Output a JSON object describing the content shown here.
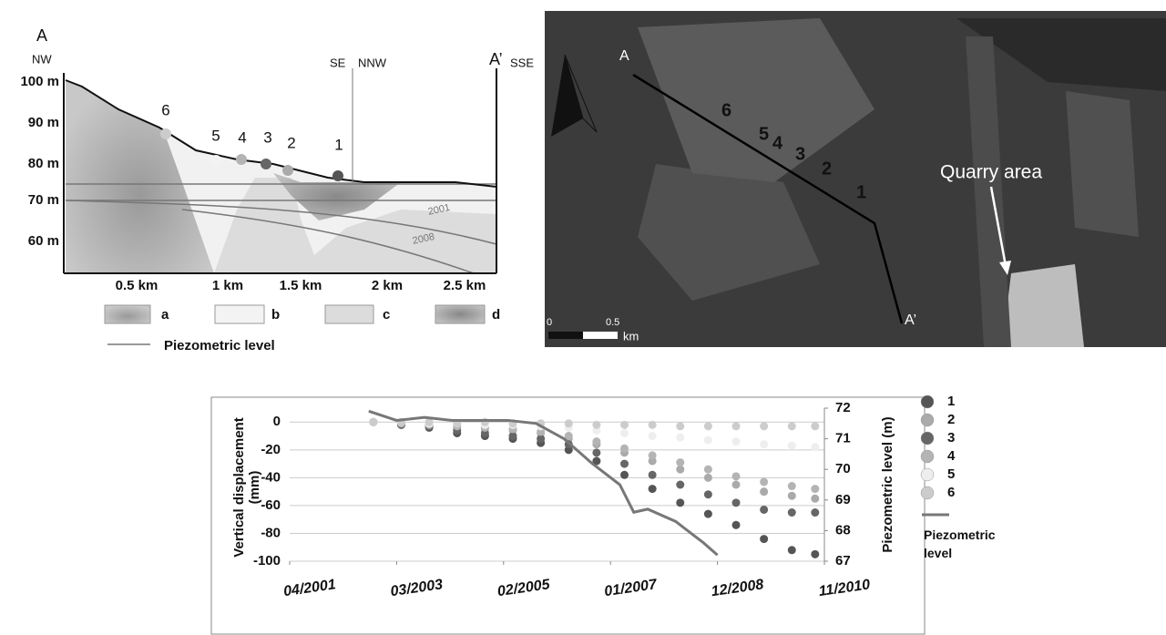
{
  "cross_section": {
    "start_label": "A",
    "start_direction": "NW",
    "break_left": "SE",
    "break_right": "NNW",
    "end_label": "A’",
    "end_direction": "SSE",
    "depth_labels": [
      "100 m",
      "90 m",
      "80 m",
      "70 m",
      "60 m"
    ],
    "distance_labels": [
      "0.5 km",
      "1 km",
      "1.5 km",
      "2 km",
      "2.5 km"
    ],
    "points": [
      "6",
      "5",
      "4",
      "3",
      "2",
      "1"
    ],
    "curve_labels": [
      "2001",
      "2008"
    ],
    "legend": [
      "a",
      "b",
      "c",
      "d"
    ],
    "piezometric_label": "Piezometric level"
  },
  "map": {
    "start_label": "A",
    "end_label": "A’",
    "points": [
      "6",
      "5",
      "4",
      "3",
      "2",
      "1"
    ],
    "area_label": "Quarry area",
    "scale_labels": [
      "0",
      "0.5",
      "km"
    ]
  },
  "chart_data": {
    "type": "scatter",
    "y_label": "Vertical displacement (mm)",
    "y2_label": "Piezometric level (m)",
    "xlim": [
      "04/2001",
      "11/2010"
    ],
    "xticks": [
      "04/2001",
      "03/2003",
      "02/2005",
      "01/2007",
      "12/2008",
      "11/2010"
    ],
    "ylim": [
      -100,
      10
    ],
    "yticks": [
      0,
      -20,
      -40,
      -60,
      -80,
      -100
    ],
    "y2lim": [
      67,
      72
    ],
    "y2ticks": [
      67,
      68,
      69,
      70,
      71,
      72
    ],
    "grid": true,
    "x": [
      "10/2002",
      "04/2003",
      "10/2003",
      "04/2004",
      "10/2004",
      "04/2005",
      "10/2005",
      "04/2006",
      "10/2006",
      "04/2007",
      "10/2007",
      "04/2008",
      "10/2008",
      "04/2009",
      "10/2009",
      "04/2010",
      "09/2010"
    ],
    "series": [
      {
        "name": "1",
        "color": "#555555",
        "values": [
          0,
          -2,
          -4,
          -8,
          -10,
          -12,
          -15,
          -20,
          -28,
          -38,
          -48,
          -58,
          -66,
          -74,
          -84,
          -92,
          -95
        ]
      },
      {
        "name": "2",
        "color": "#aaaaaa",
        "values": [
          0,
          -1,
          -2,
          -4,
          -5,
          -6,
          -8,
          -12,
          -16,
          -22,
          -28,
          -34,
          -40,
          -45,
          -50,
          -53,
          -55
        ]
      },
      {
        "name": "3",
        "color": "#666666",
        "values": [
          0,
          -2,
          -3,
          -6,
          -8,
          -10,
          -12,
          -16,
          -22,
          -30,
          -38,
          -45,
          -52,
          -58,
          -63,
          -65,
          -65
        ]
      },
      {
        "name": "4",
        "color": "#b4b4b4",
        "values": [
          0,
          -1,
          -2,
          -3,
          -4,
          -5,
          -7,
          -10,
          -14,
          -19,
          -24,
          -29,
          -34,
          -39,
          -43,
          -46,
          -48
        ]
      },
      {
        "name": "5",
        "color": "#eeeeee",
        "values": [
          0,
          0,
          -1,
          -1,
          -2,
          -2,
          -3,
          -4,
          -6,
          -8,
          -10,
          -11,
          -13,
          -14,
          -16,
          -17,
          -18
        ]
      },
      {
        "name": "6",
        "color": "#cccccc",
        "values": [
          0,
          0,
          0,
          -1,
          0,
          -1,
          -1,
          -1,
          -2,
          -2,
          -2,
          -3,
          -3,
          -3,
          -3,
          -3,
          -3
        ]
      },
      {
        "name": "Piezometric level",
        "type": "line",
        "axis": "y2",
        "color": "#777777",
        "x": [
          "09/2002",
          "03/2003",
          "09/2003",
          "03/2004",
          "09/2004",
          "03/2005",
          "09/2005",
          "03/2006",
          "09/2006",
          "03/2007",
          "06/2007",
          "09/2007",
          "03/2008",
          "09/2008",
          "12/2008"
        ],
        "values": [
          71.9,
          71.6,
          71.7,
          71.6,
          71.6,
          71.6,
          71.5,
          71.0,
          70.2,
          69.5,
          68.6,
          68.7,
          68.3,
          67.6,
          67.2
        ]
      }
    ]
  }
}
